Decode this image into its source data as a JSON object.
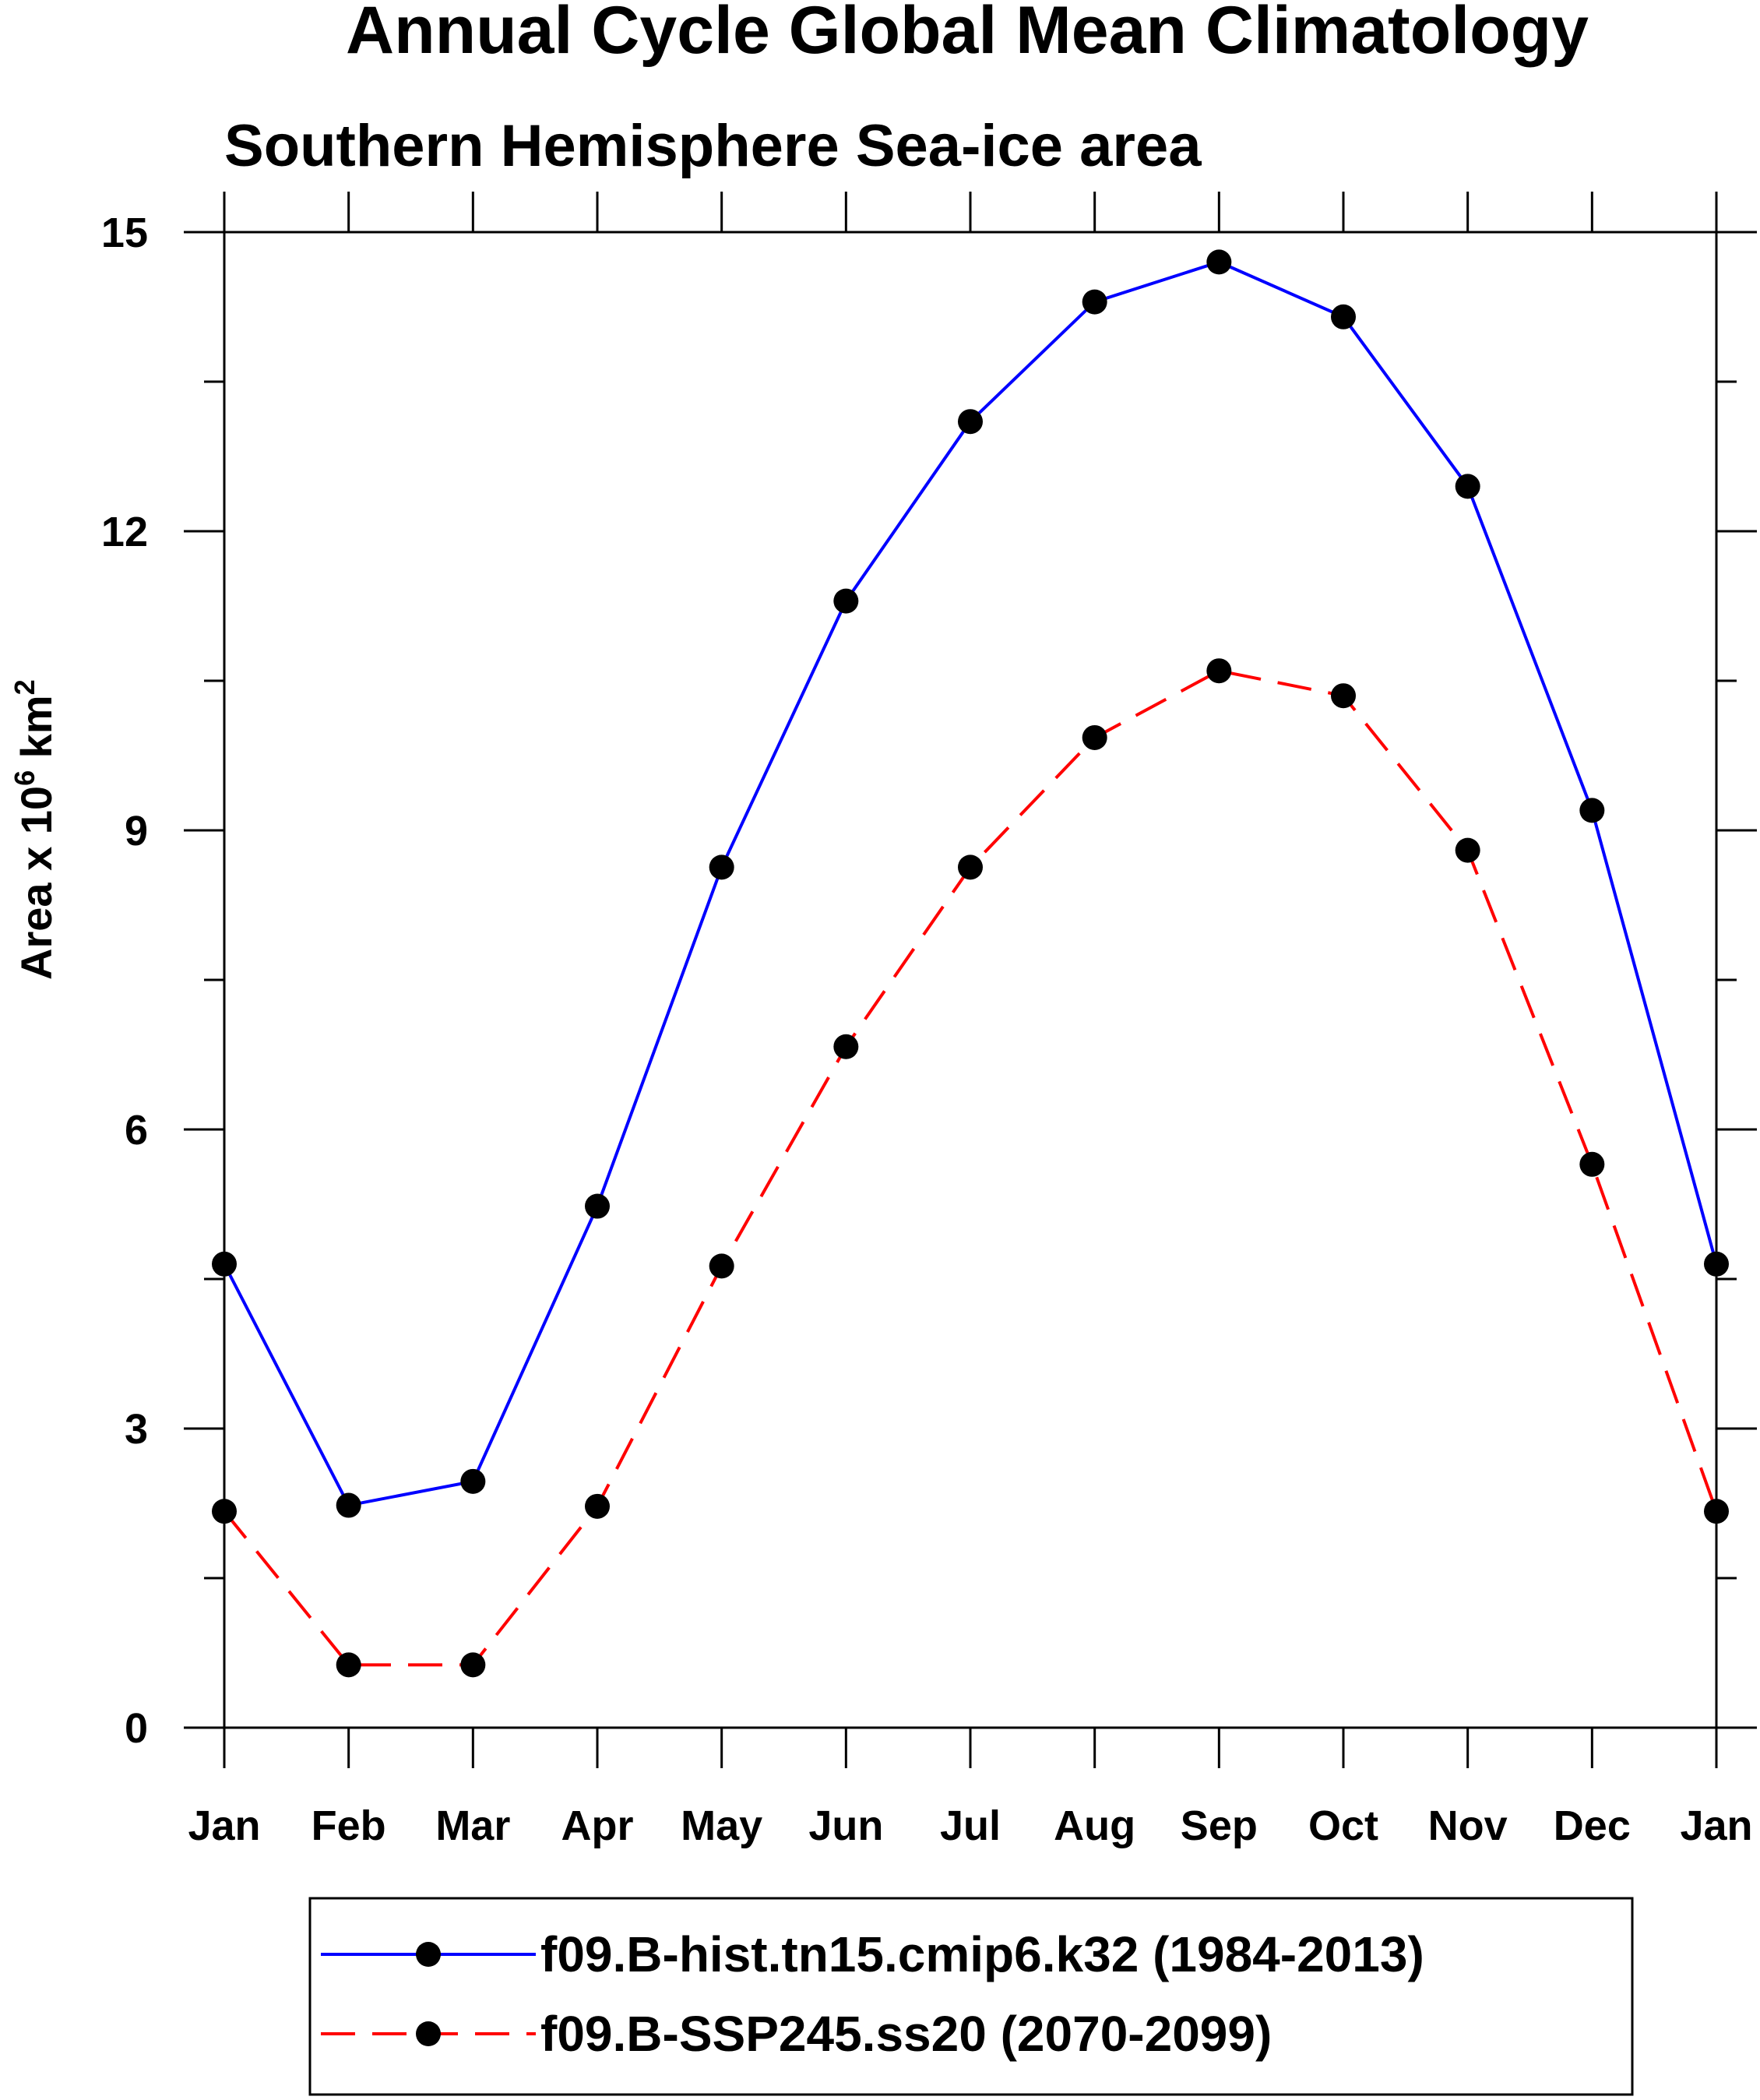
{
  "chart_data": {
    "type": "line",
    "title": "Annual Cycle Global Mean Climatology",
    "subtitle": "Southern Hemisphere Sea-ice area",
    "ylabel": {
      "prefix": "Area x 10",
      "exp": "6",
      "mid": " km",
      "exp2": "2"
    },
    "categories": [
      "Jan",
      "Feb",
      "Mar",
      "Apr",
      "May",
      "Jun",
      "Jul",
      "Aug",
      "Sep",
      "Oct",
      "Nov",
      "Dec",
      "Jan"
    ],
    "ylim": [
      0,
      15
    ],
    "yticks": [
      0,
      3,
      6,
      9,
      12,
      15
    ],
    "series": [
      {
        "name": "f09.B-hist.tn15.cmip6.k32 (1984-2013)",
        "color": "#0000ff",
        "dash": "solid",
        "values": [
          4.65,
          2.23,
          2.47,
          5.23,
          8.63,
          11.3,
          13.1,
          14.3,
          14.7,
          14.15,
          12.45,
          9.2,
          4.65
        ]
      },
      {
        "name": "f09.B-SSP245.ss20 (2070-2099)",
        "color": "#ff0000",
        "dash": "dashed",
        "values": [
          2.17,
          0.63,
          0.63,
          2.22,
          4.63,
          6.83,
          8.63,
          9.93,
          10.6,
          10.35,
          8.8,
          5.65,
          2.17
        ]
      }
    ]
  }
}
